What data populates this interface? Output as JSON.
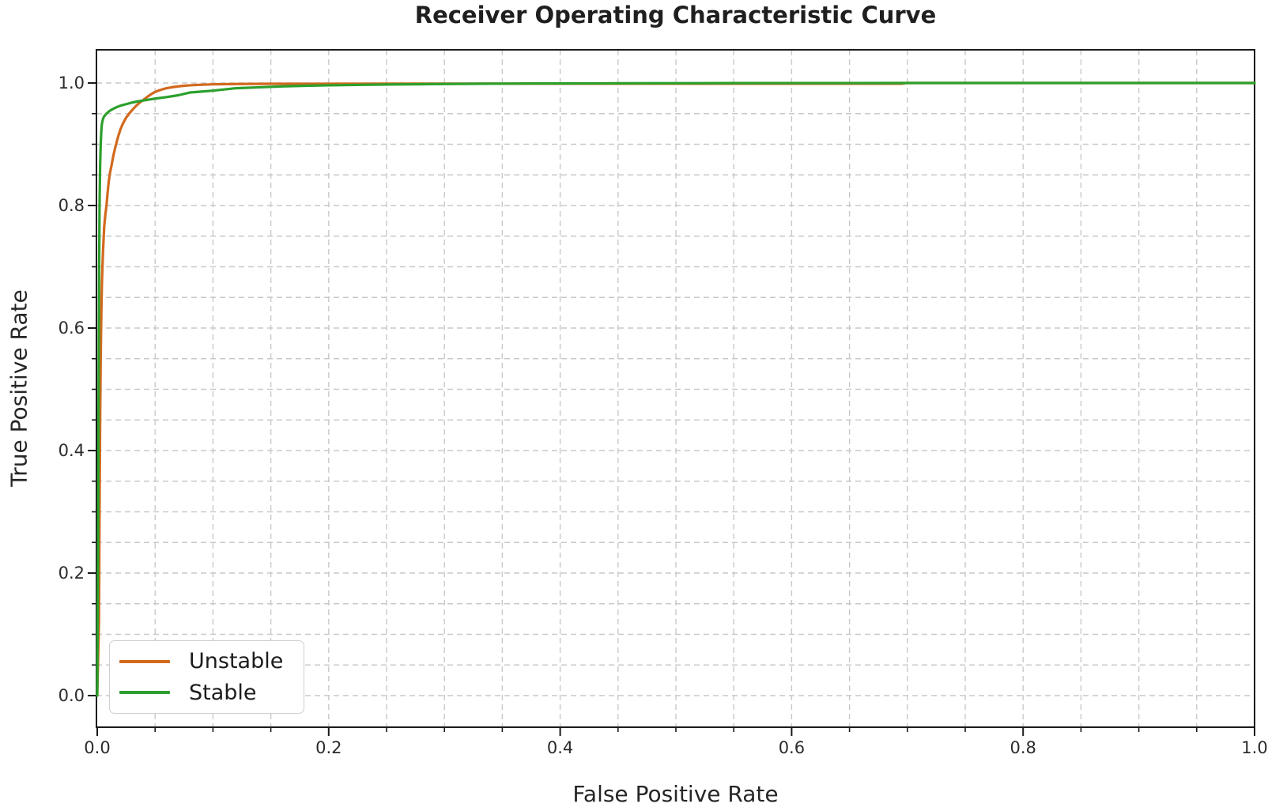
{
  "chart_data": {
    "type": "line",
    "title": "Receiver Operating Characteristic Curve",
    "xlabel": "False Positive Rate",
    "ylabel": "True Positive Rate",
    "xlim": [
      0.0,
      1.0
    ],
    "ylim": [
      -0.05,
      1.05
    ],
    "xticks": [
      0.0,
      0.2,
      0.4,
      0.6,
      0.8,
      1.0
    ],
    "xtick_labels": [
      "0.0",
      "0.2",
      "0.4",
      "0.6",
      "0.8",
      "1.0"
    ],
    "yticks": [
      0.0,
      0.2,
      0.4,
      0.6,
      0.8,
      1.0
    ],
    "ytick_labels": [
      "0.0",
      "0.2",
      "0.4",
      "0.6",
      "0.8",
      "1.0"
    ],
    "minor_tick_step": 0.05,
    "grid": {
      "visible": true,
      "step": 0.05,
      "style": "dashed",
      "color": "#c9c9c9"
    },
    "legend": {
      "position": "lower-left",
      "entries": [
        "Unstable",
        "Stable"
      ]
    },
    "axis_color": "#1a1a1a",
    "series": [
      {
        "name": "Unstable",
        "color": "#d2691e",
        "points": [
          [
            0.0,
            0.0
          ],
          [
            0.0015,
            0.12
          ],
          [
            0.002,
            0.3
          ],
          [
            0.0025,
            0.45
          ],
          [
            0.003,
            0.55
          ],
          [
            0.0035,
            0.62
          ],
          [
            0.004,
            0.67
          ],
          [
            0.0045,
            0.7
          ],
          [
            0.005,
            0.725
          ],
          [
            0.006,
            0.765
          ],
          [
            0.007,
            0.785
          ],
          [
            0.008,
            0.8
          ],
          [
            0.009,
            0.822
          ],
          [
            0.01,
            0.84
          ],
          [
            0.011,
            0.853
          ],
          [
            0.012,
            0.862
          ],
          [
            0.013,
            0.872
          ],
          [
            0.014,
            0.882
          ],
          [
            0.016,
            0.898
          ],
          [
            0.018,
            0.912
          ],
          [
            0.02,
            0.924
          ],
          [
            0.022,
            0.933
          ],
          [
            0.025,
            0.9435
          ],
          [
            0.028,
            0.951
          ],
          [
            0.031,
            0.9575
          ],
          [
            0.034,
            0.9635
          ],
          [
            0.037,
            0.9685
          ],
          [
            0.04,
            0.9725
          ],
          [
            0.043,
            0.977
          ],
          [
            0.046,
            0.981
          ],
          [
            0.049,
            0.9845
          ],
          [
            0.052,
            0.987
          ],
          [
            0.056,
            0.9895
          ],
          [
            0.06,
            0.9915
          ],
          [
            0.065,
            0.9932
          ],
          [
            0.07,
            0.9945
          ],
          [
            0.075,
            0.9955
          ],
          [
            0.08,
            0.9962
          ],
          [
            0.09,
            0.9972
          ],
          [
            0.1,
            0.9978
          ],
          [
            0.12,
            0.9984
          ],
          [
            0.15,
            0.9987
          ],
          [
            0.2,
            0.9988
          ],
          [
            0.3,
            0.9989
          ],
          [
            0.5,
            0.9989
          ],
          [
            0.695,
            0.9989
          ],
          [
            0.7,
            1.0
          ],
          [
            1.0,
            1.0
          ]
        ]
      },
      {
        "name": "Stable",
        "color": "#2ca02c",
        "points": [
          [
            0.0,
            0.0
          ],
          [
            0.0008,
            0.25
          ],
          [
            0.0012,
            0.5
          ],
          [
            0.0016,
            0.68
          ],
          [
            0.002,
            0.8
          ],
          [
            0.0025,
            0.865
          ],
          [
            0.003,
            0.9
          ],
          [
            0.0035,
            0.921
          ],
          [
            0.004,
            0.933
          ],
          [
            0.005,
            0.9415
          ],
          [
            0.006,
            0.9455
          ],
          [
            0.007,
            0.948
          ],
          [
            0.008,
            0.95
          ],
          [
            0.01,
            0.9535
          ],
          [
            0.012,
            0.956
          ],
          [
            0.015,
            0.959
          ],
          [
            0.018,
            0.9615
          ],
          [
            0.021,
            0.9635
          ],
          [
            0.025,
            0.9655
          ],
          [
            0.03,
            0.968
          ],
          [
            0.035,
            0.97
          ],
          [
            0.04,
            0.9715
          ],
          [
            0.045,
            0.973
          ],
          [
            0.05,
            0.9745
          ],
          [
            0.06,
            0.977
          ],
          [
            0.07,
            0.98
          ],
          [
            0.08,
            0.9845
          ],
          [
            0.09,
            0.986
          ],
          [
            0.1,
            0.9875
          ],
          [
            0.12,
            0.9915
          ],
          [
            0.14,
            0.993
          ],
          [
            0.16,
            0.9945
          ],
          [
            0.18,
            0.9955
          ],
          [
            0.2,
            0.9962
          ],
          [
            0.23,
            0.997
          ],
          [
            0.26,
            0.9977
          ],
          [
            0.3,
            0.9984
          ],
          [
            0.34,
            0.9989
          ],
          [
            0.38,
            0.9992
          ],
          [
            0.45,
            0.9995
          ],
          [
            0.55,
            0.9998
          ],
          [
            0.65,
            0.99995
          ],
          [
            0.7,
            1.0
          ],
          [
            1.0,
            1.0
          ]
        ]
      }
    ]
  }
}
